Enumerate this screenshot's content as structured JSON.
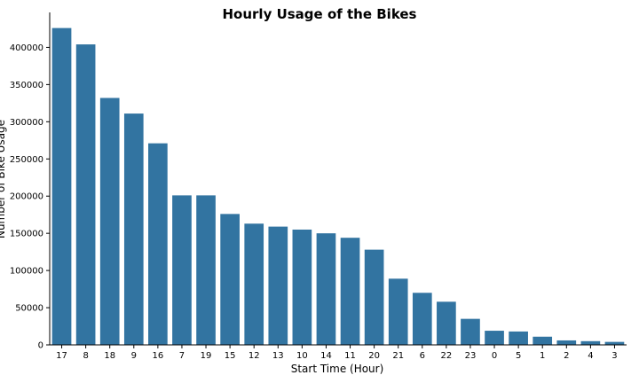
{
  "chart_data": {
    "type": "bar",
    "title": "Hourly Usage of the Bikes",
    "xlabel": "Start Time (Hour)",
    "ylabel": "Number of Bike Usage",
    "categories": [
      "17",
      "8",
      "18",
      "9",
      "16",
      "7",
      "19",
      "15",
      "12",
      "13",
      "10",
      "14",
      "11",
      "20",
      "21",
      "6",
      "22",
      "23",
      "0",
      "5",
      "1",
      "2",
      "4",
      "3"
    ],
    "values": [
      426000,
      404000,
      332000,
      311000,
      271000,
      201000,
      201000,
      176000,
      163000,
      159000,
      155000,
      150000,
      144000,
      128000,
      89000,
      70000,
      58000,
      35000,
      19000,
      18000,
      11000,
      6000,
      5000,
      4000
    ],
    "yticks": [
      0,
      50000,
      100000,
      150000,
      200000,
      250000,
      300000,
      350000,
      400000
    ],
    "ylim": [
      0,
      447000
    ],
    "bar_color": "#3274a1",
    "grid": false,
    "legend": "none"
  }
}
